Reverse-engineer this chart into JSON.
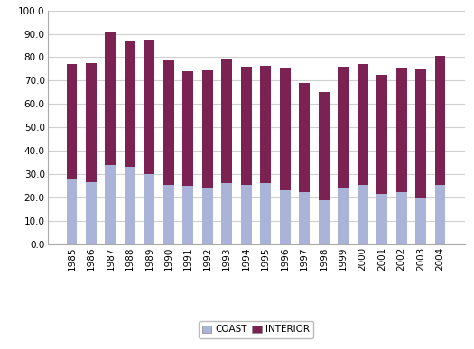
{
  "years": [
    "1985",
    "1986",
    "1987",
    "1988",
    "1989",
    "1990",
    "1991",
    "1992",
    "1993",
    "1994",
    "1995",
    "1996",
    "1997",
    "1998",
    "1999",
    "2000",
    "2001",
    "2002",
    "2003",
    "2004"
  ],
  "coast": [
    28.0,
    26.5,
    34.0,
    33.0,
    30.0,
    25.5,
    25.0,
    24.0,
    26.0,
    25.5,
    26.0,
    23.0,
    22.5,
    19.0,
    24.0,
    25.5,
    21.5,
    22.5,
    19.5,
    25.5
  ],
  "interior": [
    49.0,
    51.0,
    57.0,
    54.0,
    57.5,
    53.0,
    49.0,
    50.5,
    53.5,
    50.5,
    50.5,
    52.5,
    46.5,
    46.0,
    52.0,
    51.5,
    51.0,
    53.0,
    55.5,
    55.0
  ],
  "coast_color": "#aab4d8",
  "interior_color": "#7b2252",
  "background_color": "#ffffff",
  "ylim": [
    0,
    100
  ],
  "yticks": [
    0.0,
    10.0,
    20.0,
    30.0,
    40.0,
    50.0,
    60.0,
    70.0,
    80.0,
    90.0,
    100.0
  ],
  "bar_width": 0.55,
  "legend_coast": "COAST",
  "legend_interior": "INTERIOR",
  "grid_color": "#d0d0d0",
  "tick_fontsize": 7.5,
  "ytick_fontsize": 7.5
}
